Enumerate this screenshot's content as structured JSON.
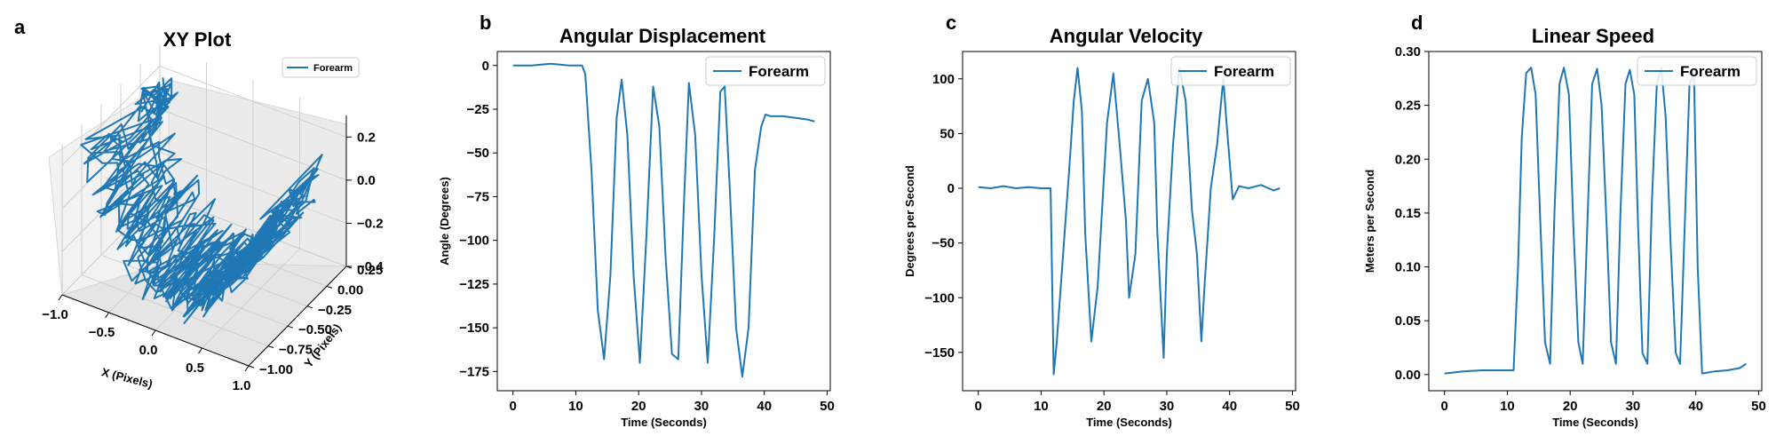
{
  "figure": {
    "series_color": "#1f77b4",
    "panels": [
      {
        "letter": "a",
        "title": "XY Plot"
      },
      {
        "letter": "b",
        "title": "Angular Displacement"
      },
      {
        "letter": "c",
        "title": "Angular Velocity"
      },
      {
        "letter": "d",
        "title": "Linear Speed"
      }
    ]
  },
  "chart_data": [
    {
      "type": "line3d",
      "title": "XY Plot",
      "xlabel": "X (Pixels)",
      "ylabel": "Y (Pixels)",
      "zlabel": "",
      "xlim": [
        -1.0,
        1.0
      ],
      "ylim": [
        -1.0,
        0.25
      ],
      "zlim": [
        -0.4,
        0.3
      ],
      "xticks": [
        "−1.0",
        "−0.5",
        "0.0",
        "0.5",
        "1.0"
      ],
      "yticks": [
        "−1.00",
        "−0.75",
        "−0.50",
        "−0.25",
        "0.00",
        "0.25"
      ],
      "zticks": [
        "−0.4",
        "−0.2",
        "0.0",
        "0.2"
      ],
      "legend": "top-right",
      "grid": true,
      "series": [
        {
          "name": "Forearm",
          "note": "trajectory traced back and forth across the bowl-shaped surface"
        }
      ]
    },
    {
      "type": "line",
      "title": "Angular Displacement",
      "xlabel": "Time (Seconds)",
      "ylabel": "Angle (Degrees)",
      "xlim": [
        -2.5,
        50.5
      ],
      "ylim": [
        -186,
        8
      ],
      "xticks": [
        0,
        10,
        20,
        30,
        40,
        50
      ],
      "yticks": [
        0,
        -25,
        -50,
        -75,
        -100,
        -125,
        -150,
        -175
      ],
      "legend": "top-right",
      "grid": false,
      "series": [
        {
          "name": "Forearm",
          "x": [
            0,
            3,
            6,
            9,
            11,
            11.5,
            12.5,
            13.5,
            14.5,
            15.5,
            16.5,
            17.3,
            18.2,
            19.2,
            20.2,
            21.2,
            22.3,
            23.3,
            24.3,
            25.3,
            26.3,
            27.2,
            28,
            29,
            30,
            31,
            32,
            33,
            33.7,
            34.5,
            35.5,
            36.5,
            37.5,
            38.5,
            39.5,
            40.2,
            41,
            43,
            45,
            47,
            48
          ],
          "y": [
            0,
            0,
            1,
            0,
            0,
            -5,
            -60,
            -140,
            -168,
            -120,
            -30,
            -8,
            -40,
            -120,
            -170,
            -100,
            -12,
            -35,
            -110,
            -165,
            -168,
            -80,
            -10,
            -40,
            -120,
            -170,
            -100,
            -15,
            -12,
            -70,
            -150,
            -178,
            -150,
            -60,
            -35,
            -28,
            -29,
            -29,
            -30,
            -31,
            -32
          ]
        }
      ]
    },
    {
      "type": "line",
      "title": "Angular Velocity",
      "xlabel": "Time (Seconds)",
      "ylabel": "Degrees per Second",
      "xlim": [
        -2.5,
        50.5
      ],
      "ylim": [
        -185,
        125
      ],
      "xticks": [
        0,
        10,
        20,
        30,
        40,
        50
      ],
      "yticks": [
        100,
        50,
        0,
        -50,
        -100,
        -150
      ],
      "legend": "top-right",
      "grid": false,
      "series": [
        {
          "name": "Forearm",
          "x": [
            0,
            2,
            4,
            6,
            8,
            10,
            11.5,
            12,
            12.5,
            13.5,
            14.5,
            15.2,
            15.8,
            16.5,
            17,
            18,
            19,
            20.5,
            21.5,
            22.5,
            23.5,
            24,
            25,
            26,
            27,
            28,
            28.5,
            29.5,
            30,
            31,
            32,
            33,
            34,
            34.8,
            35.5,
            36,
            37,
            38,
            39,
            39.5,
            40.5,
            41.5,
            43,
            45,
            47,
            48
          ],
          "y": [
            1,
            0,
            2,
            0,
            1,
            0,
            0,
            -170,
            -140,
            -60,
            20,
            80,
            110,
            70,
            -40,
            -140,
            -90,
            60,
            105,
            40,
            -30,
            -100,
            -60,
            80,
            100,
            60,
            -40,
            -155,
            -60,
            40,
            110,
            80,
            -20,
            -60,
            -140,
            -90,
            0,
            40,
            100,
            60,
            -10,
            2,
            0,
            3,
            -2,
            0
          ]
        }
      ]
    },
    {
      "type": "line",
      "title": "Linear Speed",
      "xlabel": "Time (Seconds)",
      "ylabel": "Meters per Second",
      "xlim": [
        -2.5,
        50.5
      ],
      "ylim": [
        -0.015,
        0.3
      ],
      "xticks": [
        0,
        10,
        20,
        30,
        40,
        50
      ],
      "yticks": [
        "0.00",
        "0.05",
        "0.10",
        "0.15",
        "0.20",
        "0.25",
        "0.30"
      ],
      "legend": "top-right",
      "grid": false,
      "series": [
        {
          "name": "Forearm",
          "x": [
            0,
            3,
            6,
            9,
            11,
            11.7,
            12.3,
            13,
            13.8,
            14.5,
            15.2,
            16,
            16.8,
            17.5,
            18.3,
            19,
            19.8,
            20.5,
            21.3,
            22,
            22.8,
            23.5,
            24.3,
            25,
            25.8,
            26.5,
            27.3,
            28,
            28.8,
            29.5,
            30.2,
            30.8,
            31.5,
            32.3,
            33,
            33.8,
            34.5,
            35.2,
            36,
            36.8,
            37.5,
            38.3,
            39,
            39.7,
            40.3,
            41,
            43,
            45,
            47,
            48
          ],
          "y": [
            0.001,
            0.003,
            0.004,
            0.004,
            0.004,
            0.1,
            0.22,
            0.28,
            0.285,
            0.26,
            0.15,
            0.03,
            0.01,
            0.15,
            0.27,
            0.285,
            0.26,
            0.14,
            0.03,
            0.01,
            0.15,
            0.27,
            0.284,
            0.25,
            0.14,
            0.03,
            0.01,
            0.15,
            0.27,
            0.283,
            0.26,
            0.14,
            0.02,
            0.01,
            0.16,
            0.27,
            0.285,
            0.24,
            0.12,
            0.02,
            0.01,
            0.15,
            0.27,
            0.28,
            0.1,
            0.001,
            0.003,
            0.004,
            0.006,
            0.01
          ]
        }
      ]
    }
  ]
}
